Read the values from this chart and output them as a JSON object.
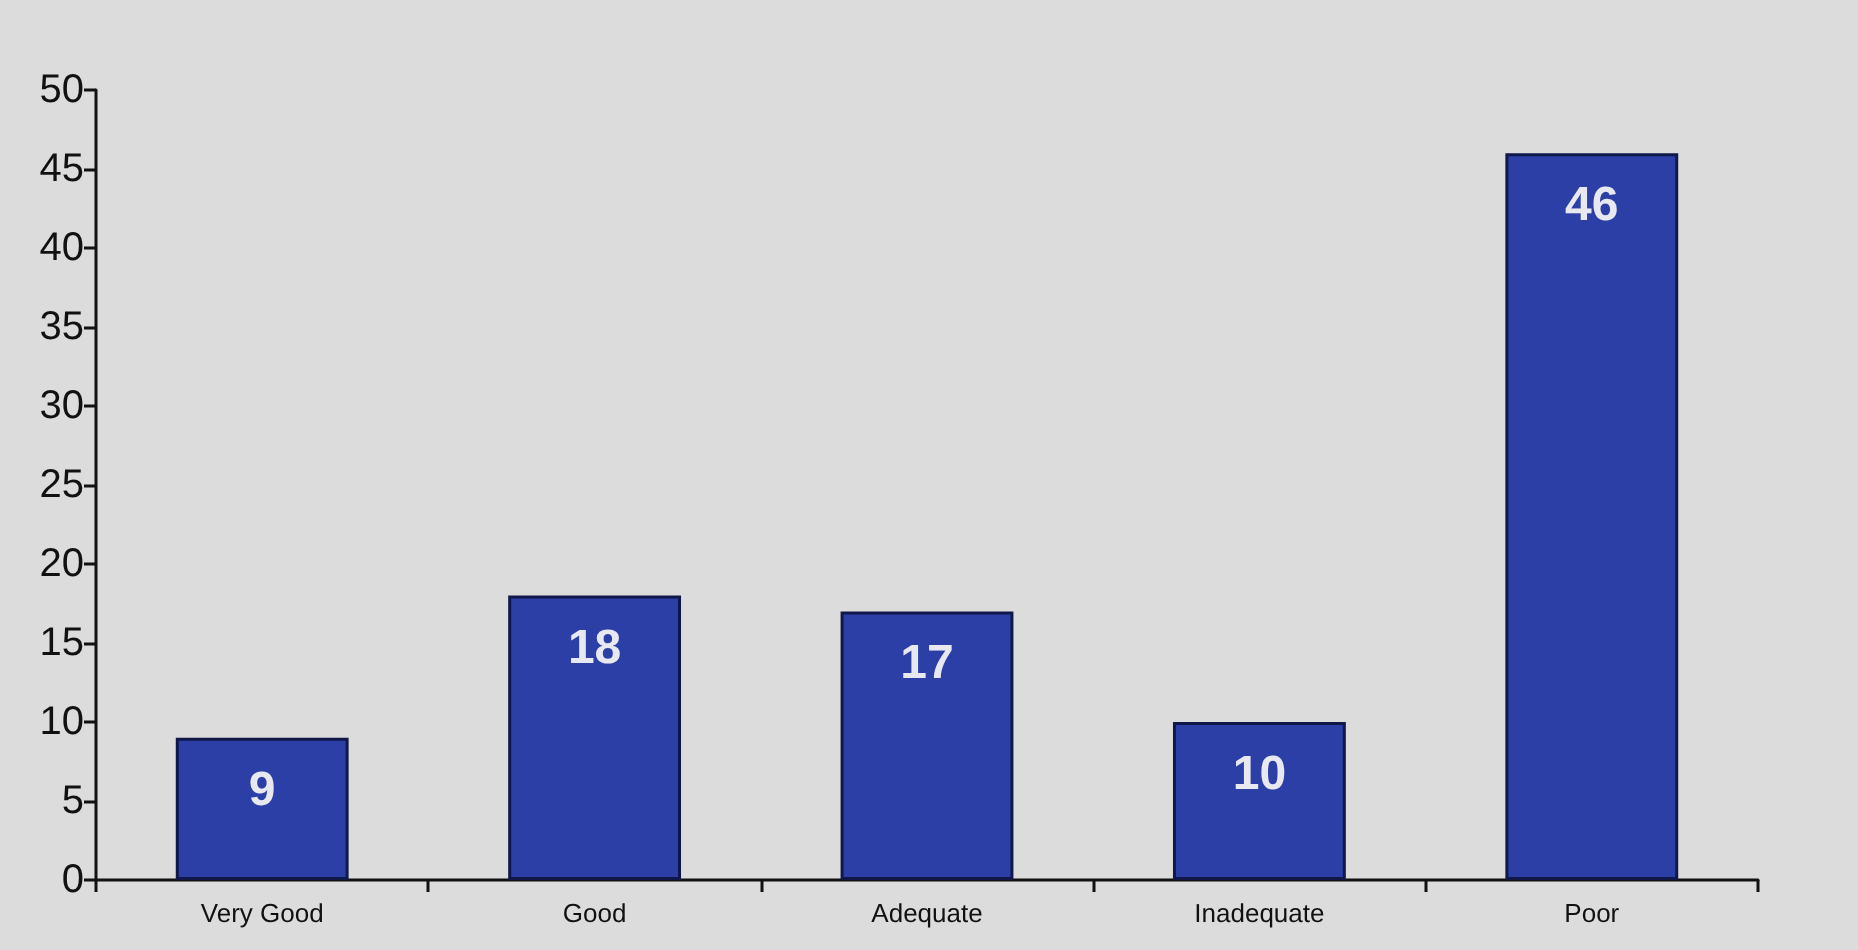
{
  "chart_data": {
    "type": "bar",
    "categories": [
      "Very Good",
      "Good",
      "Adequate",
      "Inadequate",
      "Poor"
    ],
    "values": [
      9,
      18,
      17,
      10,
      46
    ],
    "color": "#2b3fa6",
    "ylim": [
      0,
      50
    ],
    "yticks": [
      0,
      5,
      10,
      15,
      20,
      25,
      30,
      35,
      40,
      45,
      50
    ],
    "data_labels": true
  }
}
